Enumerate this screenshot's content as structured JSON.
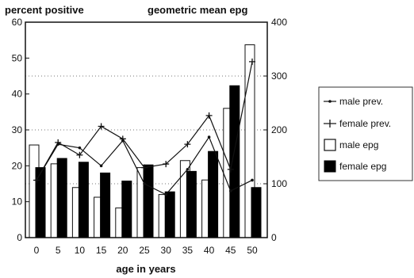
{
  "chart_data": {
    "type": "bar",
    "title": "",
    "left_axis_label": "percent positive",
    "right_axis_label": "geometric mean epg",
    "xlabel": "age in years",
    "categories": [
      "0",
      "5",
      "10",
      "15",
      "20",
      "25",
      "30",
      "35",
      "40",
      "45",
      "50"
    ],
    "left_ylim": [
      0,
      60
    ],
    "left_ticks": [
      "0",
      "10",
      "20",
      "30",
      "40",
      "50",
      "60"
    ],
    "right_ylim": [
      0,
      400
    ],
    "right_ticks": [
      "0",
      "100",
      "200",
      "300",
      "400"
    ],
    "grid": "dotted horizontal at 100, 200, 300 epg",
    "legend_position": "right",
    "series": [
      {
        "name": "male prev.",
        "type": "line",
        "marker": "dot",
        "axis": "left",
        "values": [
          16,
          26,
          25,
          20,
          27,
          15,
          12,
          19,
          28,
          13,
          16
        ]
      },
      {
        "name": "female prev.",
        "type": "line",
        "marker": "plus",
        "axis": "left",
        "values": [
          16,
          26.5,
          23,
          31,
          27.5,
          19.5,
          20.5,
          26,
          34,
          19,
          49
        ]
      },
      {
        "name": "male epg",
        "type": "bar",
        "color": "#ffffff",
        "axis": "right",
        "values": [
          172,
          137,
          93,
          75,
          55,
          130,
          80,
          143,
          107,
          240,
          358
        ]
      },
      {
        "name": "female epg",
        "type": "bar",
        "color": "#000000",
        "axis": "right",
        "values": [
          130,
          147,
          140,
          120,
          105,
          135,
          85,
          123,
          160,
          282,
          93
        ]
      }
    ]
  }
}
